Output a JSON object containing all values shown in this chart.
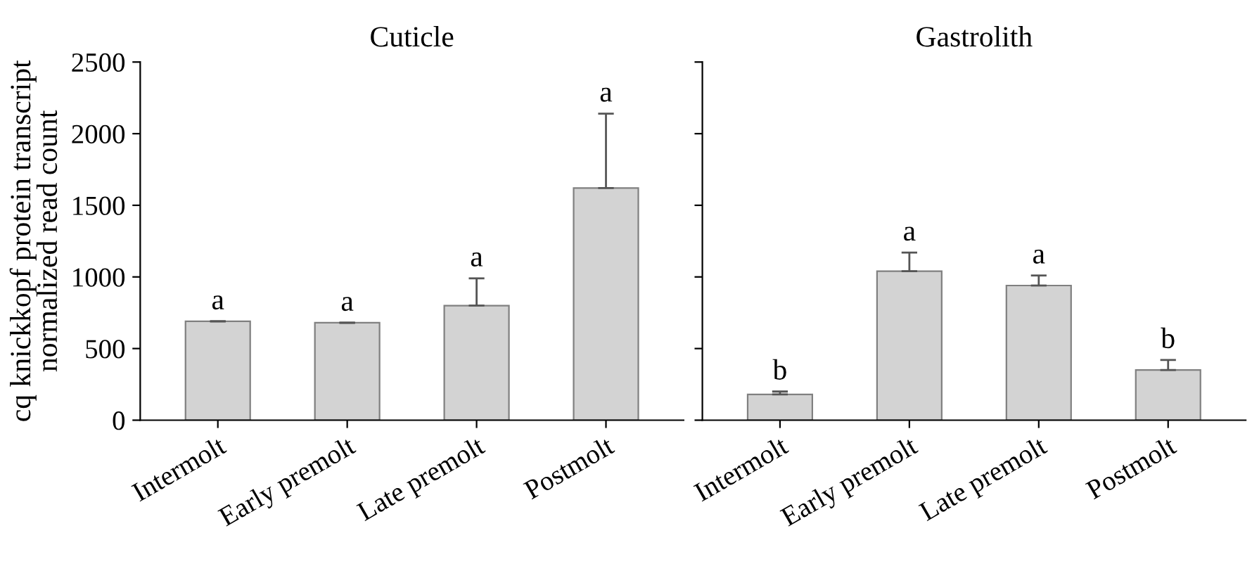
{
  "chart_data": [
    {
      "type": "bar",
      "title": "Cuticle",
      "ylabel": "cq knickkopf protein transcript\nnormalized read count",
      "categories": [
        "Intermolt",
        "Early premolt",
        "Late premolt",
        "Postmolt"
      ],
      "values": [
        690,
        680,
        800,
        1620
      ],
      "errors": [
        null,
        null,
        [
          800,
          990
        ],
        [
          1620,
          2140
        ]
      ],
      "color": "#d3d3d3",
      "ylim": [
        0,
        2500
      ],
      "yticks": [
        0,
        500,
        1000,
        1500,
        2000,
        2500
      ],
      "grid": false,
      "annotations": [
        "a",
        "a",
        "a",
        "a"
      ]
    },
    {
      "type": "bar",
      "title": "Gastrolith",
      "categories": [
        "Intermolt",
        "Early premolt",
        "Late premolt",
        "Postmolt"
      ],
      "values": [
        180,
        1040,
        940,
        350
      ],
      "errors": [
        [
          180,
          200
        ],
        [
          1040,
          1170
        ],
        [
          940,
          1010
        ],
        [
          350,
          420
        ]
      ],
      "color": "#d3d3d3",
      "ylim": [
        0,
        2500
      ],
      "yticks": [
        {
          "value": 0,
          "label": null
        },
        {
          "value": 500,
          "label": null
        },
        {
          "value": 1000,
          "label": null
        },
        {
          "value": 1500,
          "label": null
        },
        {
          "value": 2000,
          "label": null
        },
        {
          "value": 2500,
          "label": null
        }
      ],
      "tick_labels": "x",
      "grid": false,
      "annotations": [
        "b",
        "a",
        "a",
        "b"
      ]
    }
  ]
}
